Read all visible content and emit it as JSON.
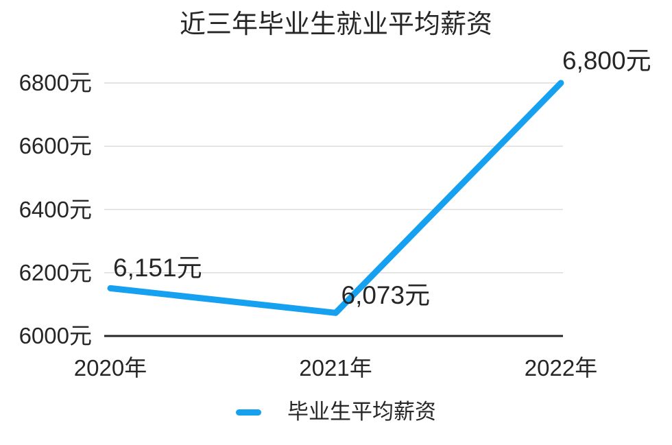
{
  "chart_data": {
    "type": "line",
    "title": "近三年毕业生就业平均薪资",
    "categories": [
      "2020年",
      "2021年",
      "2022年"
    ],
    "series": [
      {
        "name": "毕业生平均薪资",
        "values": [
          6151,
          6073,
          6800
        ]
      }
    ],
    "point_labels": [
      "6,151元",
      "6,073元",
      "6,800元"
    ],
    "yticks": [
      6000,
      6200,
      6400,
      6600,
      6800
    ],
    "ytick_labels": [
      "6000元",
      "6200元",
      "6400元",
      "6600元",
      "6800元"
    ],
    "ylim": [
      6000,
      6800
    ],
    "xlabel": "",
    "ylabel": "",
    "grid": "horizontal-light",
    "legend_position": "bottom-center",
    "colors": {
      "line": "#16a0f0",
      "text": "#262626",
      "grid": "#dcdcdc",
      "axis": "#262626",
      "background": "#ffffff"
    }
  },
  "legend": {
    "items": [
      {
        "label": "毕业生平均薪资",
        "color": "#16a0f0"
      }
    ]
  }
}
